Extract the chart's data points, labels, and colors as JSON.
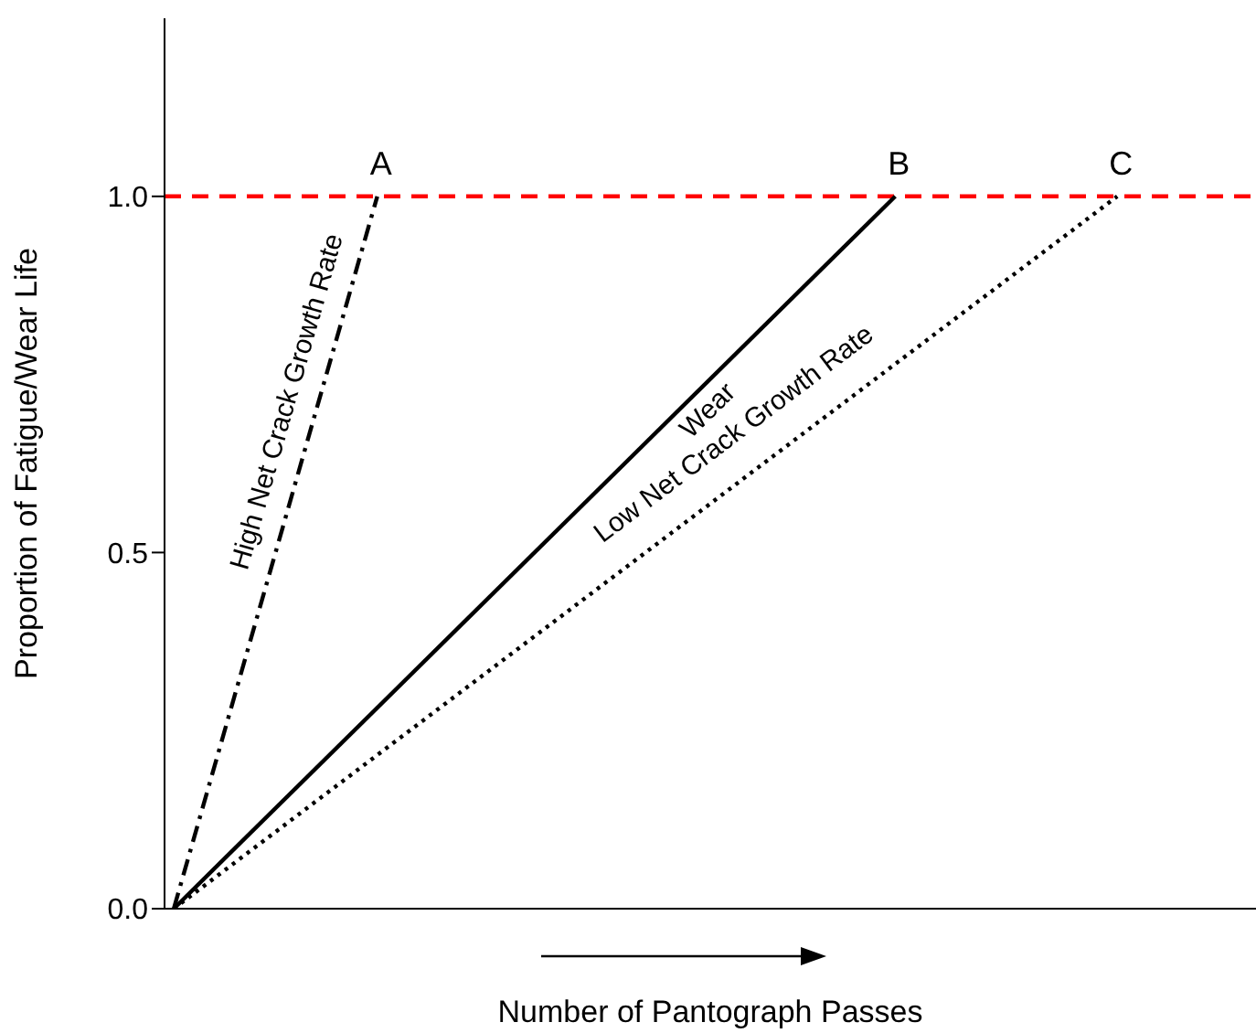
{
  "chart_data": {
    "type": "line",
    "xlabel": "Number of Pantograph Passes",
    "ylabel": "Proportion of Fatigue/Wear Life",
    "categories": [
      null,
      null,
      null,
      null,
      null,
      null,
      null,
      null,
      null,
      null,
      null,
      null,
      null,
      null,
      null,
      null,
      null,
      null,
      null,
      null,
      null,
      null,
      null,
      null,
      null,
      null,
      null,
      null,
      null,
      null,
      null,
      null,
      null,
      null,
      null,
      null,
      null,
      null,
      null,
      null,
      null,
      null,
      null,
      null,
      null,
      null,
      null,
      null,
      null,
      null,
      null,
      null,
      null,
      null,
      null,
      null,
      null,
      null,
      null
    ],
    "ylim": [
      0,
      1.25
    ],
    "yticks": [
      {
        "value": 0,
        "label": "0.0"
      },
      {
        "value": 0.5,
        "label": "0.5"
      },
      {
        "value": 1,
        "label": "1.0"
      }
    ],
    "tick_labels": "y",
    "marker": "none",
    "series": [
      {
        "name": "High Net Crack Growth Rate",
        "color": "#000000",
        "values": [
          0,
          null,
          null,
          null,
          null,
          null,
          null,
          null,
          null,
          null,
          null,
          1,
          null,
          null,
          null,
          null,
          null,
          null,
          null,
          null,
          null,
          null,
          null,
          null,
          null,
          null,
          null,
          null,
          null,
          null,
          null,
          null,
          null,
          null,
          null,
          null,
          null,
          null,
          null,
          null,
          null,
          null,
          null,
          null,
          null,
          null,
          null,
          null,
          null,
          null,
          null,
          null,
          null,
          null,
          null,
          null,
          null,
          null,
          null
        ],
        "line_style": "dashed"
      },
      {
        "name": "Wear",
        "color": "#000000",
        "values": [
          0,
          null,
          null,
          null,
          null,
          null,
          null,
          null,
          null,
          null,
          null,
          null,
          null,
          null,
          null,
          null,
          null,
          null,
          null,
          null,
          null,
          null,
          null,
          null,
          null,
          null,
          null,
          null,
          null,
          null,
          null,
          null,
          null,
          null,
          null,
          null,
          null,
          null,
          null,
          1,
          null,
          null,
          null,
          null,
          null,
          null,
          null,
          null,
          null,
          null,
          null,
          null,
          null,
          null,
          null,
          null,
          null,
          null,
          null
        ],
        "line_style": "solid"
      },
      {
        "name": "Low Net Crack Growth Rate",
        "color": "#000000",
        "values": [
          0,
          null,
          null,
          null,
          null,
          null,
          null,
          null,
          null,
          null,
          null,
          null,
          null,
          null,
          null,
          null,
          null,
          null,
          null,
          null,
          null,
          null,
          null,
          null,
          null,
          null,
          null,
          null,
          null,
          null,
          null,
          null,
          null,
          null,
          null,
          null,
          null,
          null,
          null,
          null,
          null,
          null,
          null,
          null,
          null,
          null,
          null,
          null,
          null,
          null,
          null,
          1,
          null,
          null,
          null,
          null,
          null,
          null,
          null
        ],
        "line_style": "dotted"
      }
    ],
    "ref_lines": [
      {
        "axis": "y",
        "value": 1,
        "color": "#ff0000",
        "line_style": "dashed"
      }
    ],
    "annotations": [
      "A",
      "B",
      "C"
    ]
  }
}
